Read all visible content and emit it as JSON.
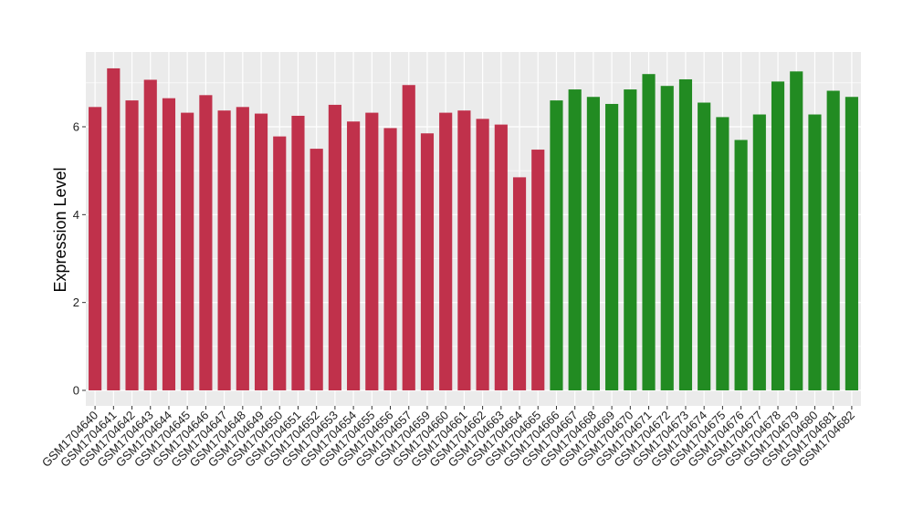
{
  "chart_data": {
    "type": "bar",
    "title": "",
    "xlabel": "",
    "ylabel": "Expression Level",
    "ylim": [
      0,
      7.6
    ],
    "yticks": [
      0,
      2,
      4,
      6
    ],
    "grid": true,
    "background": "#ebebeb",
    "gridColor": "#ffffff",
    "categories": [
      "GSM1704640",
      "GSM1704641",
      "GSM1704642",
      "GSM1704643",
      "GSM1704644",
      "GSM1704645",
      "GSM1704646",
      "GSM1704647",
      "GSM1704648",
      "GSM1704649",
      "GSM1704650",
      "GSM1704651",
      "GSM1704652",
      "GSM1704653",
      "GSM1704654",
      "GSM1704655",
      "GSM1704656",
      "GSM1704657",
      "GSM1704659",
      "GSM1704660",
      "GSM1704661",
      "GSM1704662",
      "GSM1704663",
      "GSM1704664",
      "GSM1704665",
      "GSM1704666",
      "GSM1704667",
      "GSM1704668",
      "GSM1704669",
      "GSM1704670",
      "GSM1704671",
      "GSM1704672",
      "GSM1704673",
      "GSM1704674",
      "GSM1704675",
      "GSM1704676",
      "GSM1704677",
      "GSM1704678",
      "GSM1704679",
      "GSM1704680",
      "GSM1704681",
      "GSM1704682"
    ],
    "values": [
      6.45,
      7.33,
      6.6,
      7.07,
      6.65,
      6.32,
      6.72,
      6.37,
      6.45,
      6.3,
      5.78,
      6.25,
      5.5,
      6.5,
      6.12,
      6.32,
      5.97,
      6.95,
      5.85,
      6.32,
      6.37,
      6.18,
      6.05,
      4.85,
      5.48,
      6.6,
      6.85,
      6.68,
      6.52,
      6.85,
      7.2,
      6.93,
      7.08,
      6.55,
      6.22,
      5.7,
      6.28,
      7.03,
      7.26,
      6.28,
      6.82,
      6.68
    ],
    "colors": [
      "#c0314b",
      "#c0314b",
      "#c0314b",
      "#c0314b",
      "#c0314b",
      "#c0314b",
      "#c0314b",
      "#c0314b",
      "#c0314b",
      "#c0314b",
      "#c0314b",
      "#c0314b",
      "#c0314b",
      "#c0314b",
      "#c0314b",
      "#c0314b",
      "#c0314b",
      "#c0314b",
      "#c0314b",
      "#c0314b",
      "#c0314b",
      "#c0314b",
      "#c0314b",
      "#c0314b",
      "#c0314b",
      "#228b22",
      "#228b22",
      "#228b22",
      "#228b22",
      "#228b22",
      "#228b22",
      "#228b22",
      "#228b22",
      "#228b22",
      "#228b22",
      "#228b22",
      "#228b22",
      "#228b22",
      "#228b22",
      "#228b22",
      "#228b22",
      "#228b22"
    ]
  }
}
